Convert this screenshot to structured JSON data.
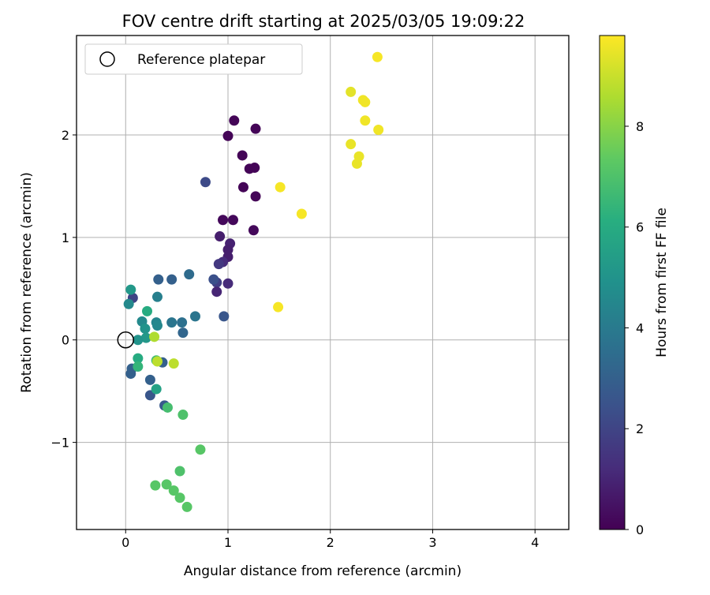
{
  "chart_data": {
    "type": "scatter",
    "title": "FOV centre drift starting at 2025/03/05 19:09:22",
    "xlabel": "Angular distance from reference (arcmin)",
    "ylabel": "Rotation from reference (arcmin)",
    "xlim": [
      -0.48,
      4.33
    ],
    "ylim": [
      -1.85,
      2.97
    ],
    "xticks": [
      0,
      1,
      2,
      3,
      4
    ],
    "xtick_labels": [
      "0",
      "1",
      "2",
      "3",
      "4"
    ],
    "yticks": [
      -1,
      0,
      1,
      2
    ],
    "ytick_labels": [
      "−1",
      "0",
      "1",
      "2"
    ],
    "grid": true,
    "legend": {
      "placement": "upper-left",
      "entries": [
        "Reference platepar"
      ]
    },
    "reference_point": {
      "x": 0,
      "y": 0,
      "marker": "open-circle"
    },
    "colorbar": {
      "label": "Hours from first FF file",
      "colormap": "viridis",
      "range": [
        0,
        9.8
      ],
      "ticks": [
        0,
        2,
        4,
        6,
        8
      ],
      "tick_labels": [
        "0",
        "2",
        "4",
        "6",
        "8"
      ]
    },
    "series": [
      {
        "x": [
          1.06,
          1.27,
          1.0,
          1.14,
          1.21,
          1.26,
          1.15,
          1.27,
          0.95,
          1.05,
          1.25,
          0.92,
          1.02,
          1.0,
          1.0,
          0.95,
          0.91,
          0.89,
          1.0,
          0.89,
          0.78,
          0.86,
          0.96,
          0.45,
          0.32,
          0.62,
          0.68,
          0.45,
          0.55,
          0.56,
          0.31,
          0.3,
          0.31,
          0.36,
          0.24,
          0.24,
          0.38,
          0.06,
          0.07,
          0.05,
          0.03,
          0.16,
          0.19,
          0.2,
          0.12,
          0.05,
          0.3,
          0.21,
          0.12,
          0.12,
          0.3,
          0.41,
          0.56,
          0.53,
          0.73,
          0.29,
          0.4,
          0.47,
          0.53,
          0.6,
          0.28,
          0.31,
          0.47,
          1.51,
          1.72,
          1.49,
          2.46,
          2.2,
          2.32,
          2.34,
          2.34,
          2.47,
          2.2,
          2.28,
          2.26
        ],
        "y": [
          2.14,
          2.06,
          1.99,
          1.8,
          1.67,
          1.68,
          1.49,
          1.4,
          1.17,
          1.17,
          1.07,
          1.01,
          0.94,
          0.88,
          0.81,
          0.76,
          0.74,
          0.56,
          0.55,
          0.47,
          1.54,
          0.59,
          0.23,
          0.59,
          0.59,
          0.64,
          0.23,
          0.17,
          0.17,
          0.07,
          0.42,
          0.17,
          0.14,
          -0.22,
          -0.39,
          -0.54,
          -0.64,
          -0.28,
          0.41,
          0.49,
          0.35,
          0.18,
          0.11,
          0.02,
          0.0,
          -0.33,
          -0.48,
          0.28,
          -0.18,
          -0.26,
          -0.2,
          -0.66,
          -0.73,
          -1.28,
          -1.07,
          -1.42,
          -1.41,
          -1.47,
          -1.54,
          -1.63,
          0.03,
          -0.21,
          -0.23,
          1.49,
          1.23,
          0.32,
          2.76,
          2.42,
          2.34,
          2.32,
          2.14,
          2.05,
          1.91,
          1.79,
          1.72
        ],
        "c": [
          0.1,
          0.1,
          0.1,
          0.1,
          0.1,
          0.1,
          0.1,
          0.1,
          0.2,
          0.2,
          0.2,
          0.8,
          0.9,
          0.8,
          0.8,
          1.2,
          1.6,
          1.8,
          1.2,
          1.0,
          2.2,
          2.4,
          2.6,
          3.0,
          3.0,
          3.4,
          3.8,
          3.8,
          3.6,
          3.2,
          4.2,
          4.4,
          4.5,
          3.0,
          3.0,
          2.6,
          2.7,
          3.0,
          2.0,
          5.2,
          4.6,
          4.6,
          5.0,
          5.2,
          5.0,
          3.0,
          5.6,
          6.0,
          6.0,
          6.4,
          6.8,
          6.8,
          7.0,
          7.0,
          7.2,
          7.2,
          7.2,
          7.2,
          7.2,
          7.2,
          8.6,
          8.8,
          8.8,
          9.7,
          9.7,
          9.7,
          9.7,
          9.4,
          9.6,
          9.6,
          9.6,
          9.6,
          9.5,
          9.5,
          9.5
        ]
      }
    ]
  }
}
